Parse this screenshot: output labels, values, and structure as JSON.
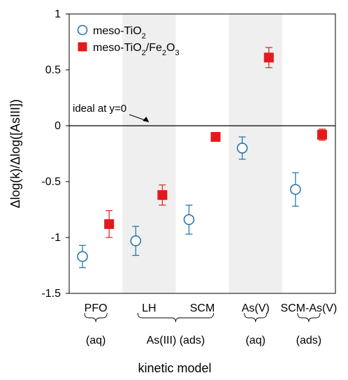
{
  "chart_data": {
    "type": "scatter",
    "categories": [
      "PFO",
      "LH",
      "SCM",
      "As(V)",
      "SCM-As(V)"
    ],
    "ylim": [
      -1.5,
      1
    ],
    "yticks": [
      "1",
      "0.5",
      "0",
      "-0.5",
      "-1",
      "-1.5"
    ],
    "ylabel": "Δlog(k)/Δlog([AsIII])",
    "xlabel": "kinetic model",
    "shaded_categories": [
      "LH",
      "As(V)"
    ],
    "groups": [
      {
        "label": "(aq)",
        "from": "PFO",
        "to": "PFO"
      },
      {
        "label": "As(III) (ads)",
        "from": "LH",
        "to": "SCM"
      },
      {
        "label": "(aq)",
        "from": "As(V)",
        "to": "As(V)"
      },
      {
        "label": "(ads)",
        "from": "SCM-As(V)",
        "to": "SCM-As(V)"
      }
    ],
    "series": [
      {
        "name_main": "meso-TiO",
        "name_parts": [
          {
            "t": "meso-TiO"
          },
          {
            "t": "2",
            "sub": true
          }
        ],
        "marker": "circle-open",
        "color": "#1f6fa8",
        "values": [
          -1.17,
          -1.03,
          -0.84,
          -0.2,
          -0.57
        ],
        "errors": [
          0.1,
          0.13,
          0.13,
          0.1,
          0.15
        ]
      },
      {
        "name_main": "meso-TiO2/Fe2O3",
        "name_parts": [
          {
            "t": "meso-TiO"
          },
          {
            "t": "2",
            "sub": true
          },
          {
            "t": "/Fe"
          },
          {
            "t": "2",
            "sub": true
          },
          {
            "t": "O"
          },
          {
            "t": "3",
            "sub": true
          }
        ],
        "marker": "square-filled",
        "color": "#e31a1c",
        "values": [
          -0.88,
          -0.62,
          -0.1,
          0.61,
          -0.08
        ],
        "errors": [
          0.12,
          0.09,
          0.0,
          0.09,
          0.05
        ]
      }
    ],
    "annotation": {
      "text": "ideal at y=0",
      "arrow_to": {
        "x": 1.5,
        "y": 0
      }
    }
  }
}
